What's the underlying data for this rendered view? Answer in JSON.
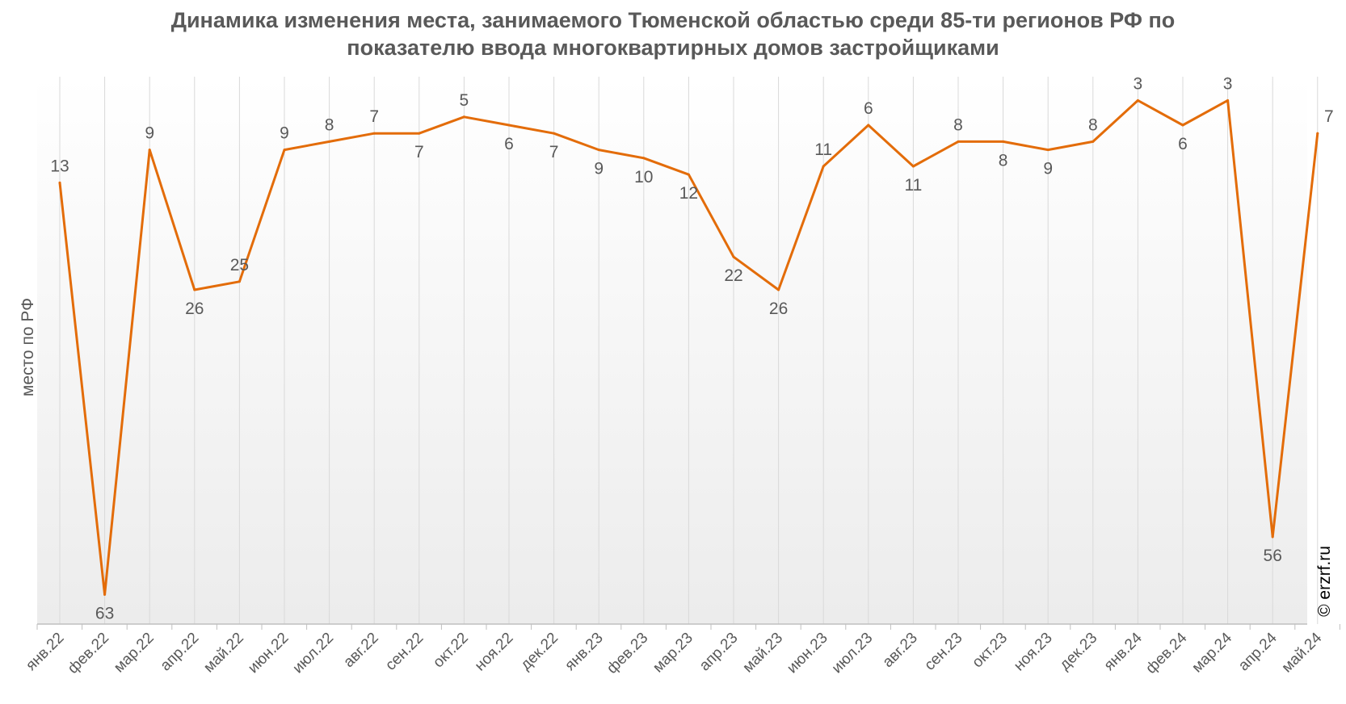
{
  "chart_data": {
    "type": "line",
    "title": "Динамика изменения места, занимаемого Тюменской областью среди 85-ти регионов РФ по показателю ввода многоквартирных домов застройщиками",
    "title_lines": [
      "Динамика изменения места, занимаемого Тюменской областью среди 85-ти регионов РФ по",
      "показателю ввода многоквартирных домов застройщиками"
    ],
    "ylabel": "место по РФ",
    "xlabel": "",
    "y_inverted": true,
    "ylim": [
      1,
      68
    ],
    "grid": "vertical",
    "categories": [
      "янв.22",
      "фев.22",
      "мар.22",
      "апр.22",
      "май.22",
      "июн.22",
      "июл.22",
      "авг.22",
      "сен.22",
      "окт.22",
      "ноя.22",
      "дек.22",
      "янв.23",
      "фев.23",
      "мар.23",
      "апр.23",
      "май.23",
      "июн.23",
      "июл.23",
      "авг.23",
      "сен.23",
      "окт.23",
      "ноя.23",
      "дек.23",
      "янв.24",
      "фев.24",
      "мар.24",
      "апр.24",
      "май.24"
    ],
    "series": [
      {
        "color": "#e36c09",
        "values": [
          13,
          63,
          9,
          26,
          25,
          9,
          8,
          7,
          7,
          5,
          6,
          7,
          9,
          10,
          12,
          22,
          26,
          11,
          6,
          11,
          8,
          8,
          9,
          8,
          3,
          6,
          3,
          56,
          7
        ]
      }
    ]
  },
  "watermark": "© erzrf.ru",
  "colors": {
    "line": "#e36c09",
    "text": "#595959",
    "grid": "#d9d9d9",
    "bg_top": "#ffffff",
    "bg_bottom": "#ededed"
  }
}
